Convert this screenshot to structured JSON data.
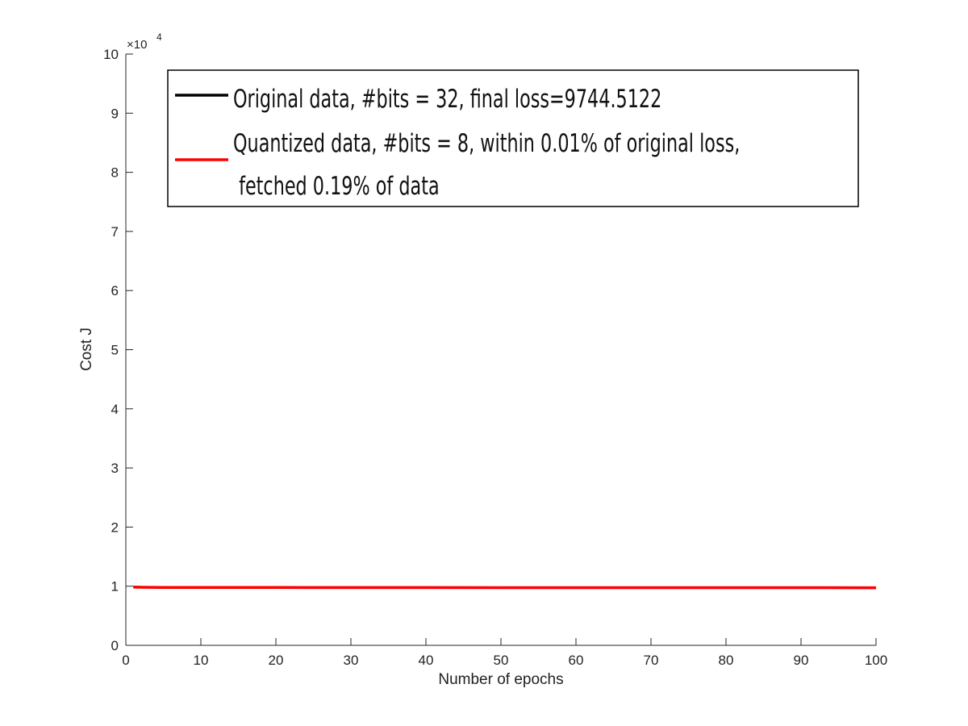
{
  "chart_data": {
    "type": "line",
    "xlabel": "Number of epochs",
    "ylabel": "Cost J",
    "y_multiplier": "×10",
    "y_multiplier_exp": "4",
    "xlim": [
      0,
      100
    ],
    "ylim": [
      0,
      10
    ],
    "xticks": [
      "0",
      "10",
      "20",
      "30",
      "40",
      "50",
      "60",
      "70",
      "80",
      "90",
      "100"
    ],
    "yticks": [
      "0",
      "1",
      "2",
      "3",
      "4",
      "5",
      "6",
      "7",
      "8",
      "9",
      "10"
    ],
    "grid": false,
    "legend_position": "top",
    "series": [
      {
        "name": "Original data, #bits = 32, final loss=9744.5122",
        "color": "#000000",
        "x": [
          1,
          2,
          5,
          10,
          20,
          30,
          40,
          50,
          60,
          70,
          80,
          90,
          100
        ],
        "y": [
          0.985,
          0.982,
          0.98,
          0.979,
          0.978,
          0.977,
          0.977,
          0.976,
          0.976,
          0.976,
          0.975,
          0.975,
          0.9745
        ]
      },
      {
        "name": "Quantized data, #bits = 8, within 0.01% of original loss,",
        "name_line2": " fetched 0.19% of data",
        "color": "#ff0000",
        "x": [
          1,
          2,
          5,
          10,
          20,
          30,
          40,
          50,
          60,
          70,
          80,
          90,
          100
        ],
        "y": [
          0.985,
          0.982,
          0.98,
          0.979,
          0.978,
          0.977,
          0.977,
          0.976,
          0.976,
          0.976,
          0.975,
          0.975,
          0.9745
        ]
      }
    ]
  }
}
